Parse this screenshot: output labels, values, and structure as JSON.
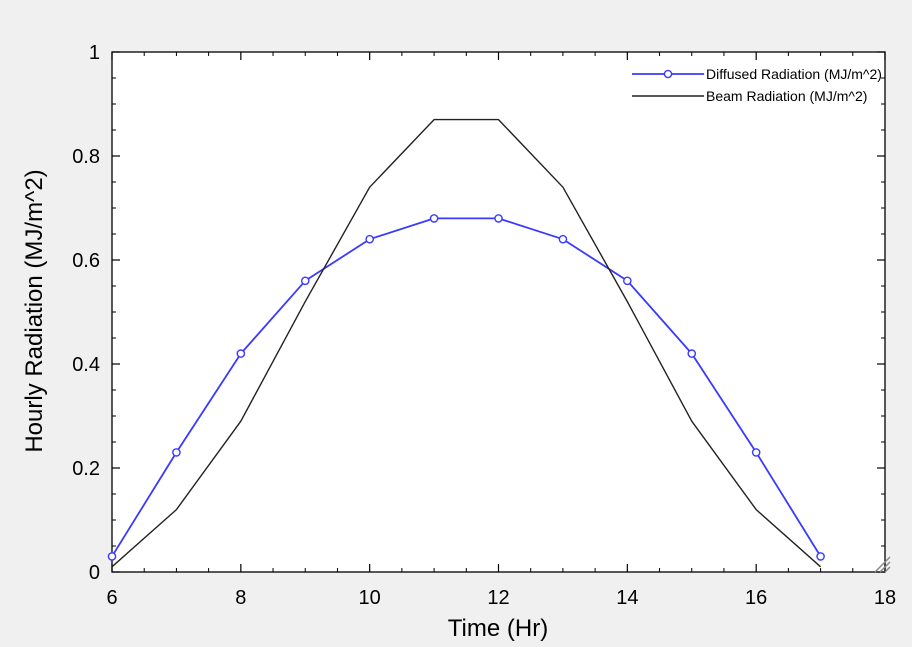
{
  "chart_data": {
    "type": "line",
    "title": "",
    "xlabel": "Time (Hr)",
    "ylabel": "Hourly Radiation (MJ/m^2)",
    "xlim": [
      6,
      18
    ],
    "ylim": [
      0,
      1
    ],
    "x_ticks": [
      6,
      8,
      10,
      12,
      14,
      16,
      18
    ],
    "y_ticks": [
      0,
      0.2,
      0.4,
      0.6,
      0.8,
      1
    ],
    "x_tick_labels": [
      "6",
      "8",
      "10",
      "12",
      "14",
      "16",
      "18"
    ],
    "y_tick_labels": [
      "0",
      "0.2",
      "0.4",
      "0.6",
      "0.8",
      "1"
    ],
    "grid": false,
    "legend_position": "top-right",
    "series": [
      {
        "name": "Diffused Radiation (MJ/m^2)",
        "color": "#3a3aff",
        "marker": "circle",
        "x": [
          6,
          7,
          8,
          9,
          10,
          11,
          12,
          13,
          14,
          15,
          16,
          17
        ],
        "y": [
          0.03,
          0.23,
          0.42,
          0.56,
          0.64,
          0.68,
          0.68,
          0.64,
          0.56,
          0.42,
          0.23,
          0.03
        ]
      },
      {
        "name": "Beam Radiation (MJ/m^2)",
        "color": "#222222",
        "marker": "none",
        "x": [
          6,
          7,
          8,
          9,
          10,
          11,
          12,
          13,
          14,
          15,
          16,
          17
        ],
        "y": [
          0.01,
          0.12,
          0.29,
          0.52,
          0.74,
          0.87,
          0.87,
          0.74,
          0.52,
          0.29,
          0.12,
          0.01
        ]
      }
    ]
  }
}
